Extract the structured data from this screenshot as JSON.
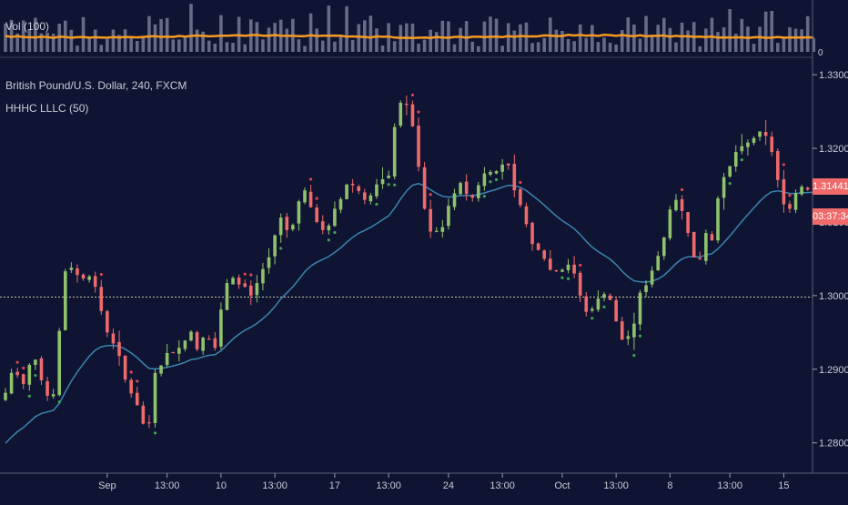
{
  "header": {
    "volume_label": "Vol (100)",
    "title": "British Pound/U.S. Dollar, 240, FXCM",
    "indicator": "HHHC LLLC (50)"
  },
  "price_tag": {
    "value": "1.31441",
    "color": "#ef6a6a"
  },
  "timer": {
    "value": "03:37:34",
    "color": "#ef6a6a"
  },
  "colors": {
    "background": "#0f1433",
    "up": "#8fc26a",
    "down": "#ef6a6a",
    "ma": "#3a86b0",
    "volume": "#676b86",
    "volume_ma": "#f59a23",
    "reference_line": "#c8c89a"
  },
  "chart_data": {
    "type": "candlestick",
    "y_ticks": [
      "1.33000",
      "1.32000",
      "1.31000",
      "1.30000",
      "1.29000",
      "1.28000"
    ],
    "volume_axis_label": "0",
    "ylim": [
      1.2765,
      1.3315
    ],
    "x_ticks": [
      {
        "label": "Sep",
        "index": 17
      },
      {
        "label": "13:00",
        "index": 27
      },
      {
        "label": "10",
        "index": 36
      },
      {
        "label": "13:00",
        "index": 45
      },
      {
        "label": "17",
        "index": 55
      },
      {
        "label": "13:00",
        "index": 64
      },
      {
        "label": "24",
        "index": 74
      },
      {
        "label": "13:00",
        "index": 83
      },
      {
        "label": "Oct",
        "index": 93
      },
      {
        "label": "13:00",
        "index": 102
      },
      {
        "label": "8",
        "index": 111
      },
      {
        "label": "13:00",
        "index": 121
      },
      {
        "label": "15",
        "index": 130
      }
    ],
    "reference_level": 1.2998,
    "close": [
      1.2868,
      1.2895,
      1.2892,
      1.288,
      1.2906,
      1.2913,
      1.2885,
      1.2864,
      1.2866,
      1.2952,
      1.3033,
      1.3038,
      1.3028,
      1.3023,
      1.3026,
      1.3012,
      1.2979,
      1.295,
      1.2935,
      1.2918,
      1.2886,
      1.2867,
      1.2851,
      1.2826,
      1.2827,
      1.2895,
      1.2905,
      1.2922,
      1.2923,
      1.2929,
      1.2939,
      1.2951,
      1.2927,
      1.2943,
      1.2941,
      1.2929,
      1.2981,
      1.3017,
      1.3024,
      1.3015,
      1.3012,
      1.3,
      1.3017,
      1.3036,
      1.3052,
      1.3082,
      1.3106,
      1.3089,
      1.3096,
      1.3128,
      1.3143,
      1.312,
      1.31,
      1.3089,
      1.3095,
      1.3118,
      1.3131,
      1.3151,
      1.315,
      1.3142,
      1.313,
      1.3136,
      1.3151,
      1.3158,
      1.3163,
      1.3229,
      1.3262,
      1.3259,
      1.323,
      1.3175,
      1.3118,
      1.3087,
      1.3088,
      1.3093,
      1.3122,
      1.3139,
      1.3153,
      1.3138,
      1.3133,
      1.315,
      1.3166,
      1.3168,
      1.3169,
      1.3178,
      1.3177,
      1.3143,
      1.3123,
      1.3097,
      1.307,
      1.3062,
      1.305,
      1.3035,
      1.3033,
      1.3035,
      1.3042,
      1.303,
      1.3,
      1.2978,
      1.2982,
      1.2996,
      1.3002,
      1.2994,
      1.2965,
      1.294,
      1.2945,
      1.2962,
      1.3004,
      1.3014,
      1.3034,
      1.3054,
      1.3079,
      1.3117,
      1.313,
      1.3115,
      1.3085,
      1.3052,
      1.3049,
      1.3085,
      1.3075,
      1.3132,
      1.3161,
      1.3176,
      1.3195,
      1.3203,
      1.3208,
      1.3214,
      1.3223,
      1.3217,
      1.3195,
      1.3157,
      1.3124,
      1.3118,
      1.3139,
      1.3148,
      1.3144,
      1.3144
    ]
  }
}
